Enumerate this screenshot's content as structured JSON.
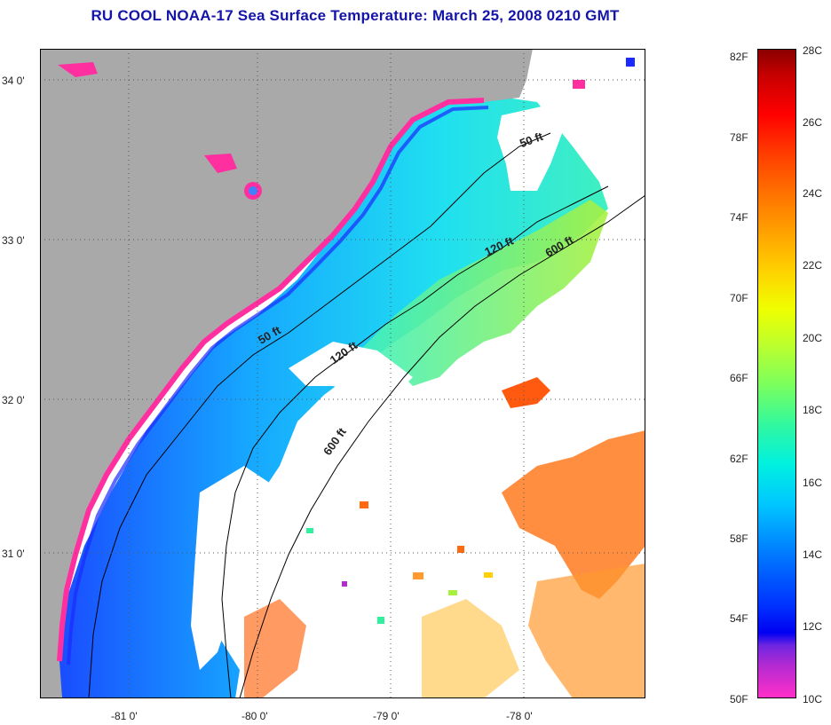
{
  "title": "RU COOL  NOAA-17  Sea Surface Temperature:  March 25, 2008 0210 GMT",
  "map": {
    "latitude_labels": [
      "34 0'",
      "33 0'",
      "32 0'",
      "31 0'"
    ],
    "longitude_labels": [
      "-81 0'",
      "-80 0'",
      "-79 0'",
      "-78 0'"
    ],
    "depth_contour_labels": [
      "50 ft",
      "120 ft",
      "600 ft",
      "50 ft",
      "120 ft",
      "600 ft"
    ],
    "colors": {
      "land": "#a9a9a9",
      "cloud_no_data": "#ffffff",
      "cold_nearshore": "#ff2fa0",
      "shelf_blue": "#2060ff",
      "shelf_cyan": "#20d8f0",
      "midshelf_green": "#90f060",
      "gulf_stream_orange": "#ff6a10",
      "title_blue": "#1515a8"
    }
  },
  "colorbar": {
    "fahrenheit_labels": [
      "82F",
      "78F",
      "74F",
      "70F",
      "66F",
      "62F",
      "58F",
      "54F",
      "50F"
    ],
    "celsius_labels": [
      "28C",
      "26C",
      "24C",
      "22C",
      "20C",
      "18C",
      "16C",
      "14C",
      "12C",
      "10C"
    ],
    "range_fahrenheit": [
      50,
      82
    ],
    "range_celsius": [
      10,
      28
    ]
  }
}
